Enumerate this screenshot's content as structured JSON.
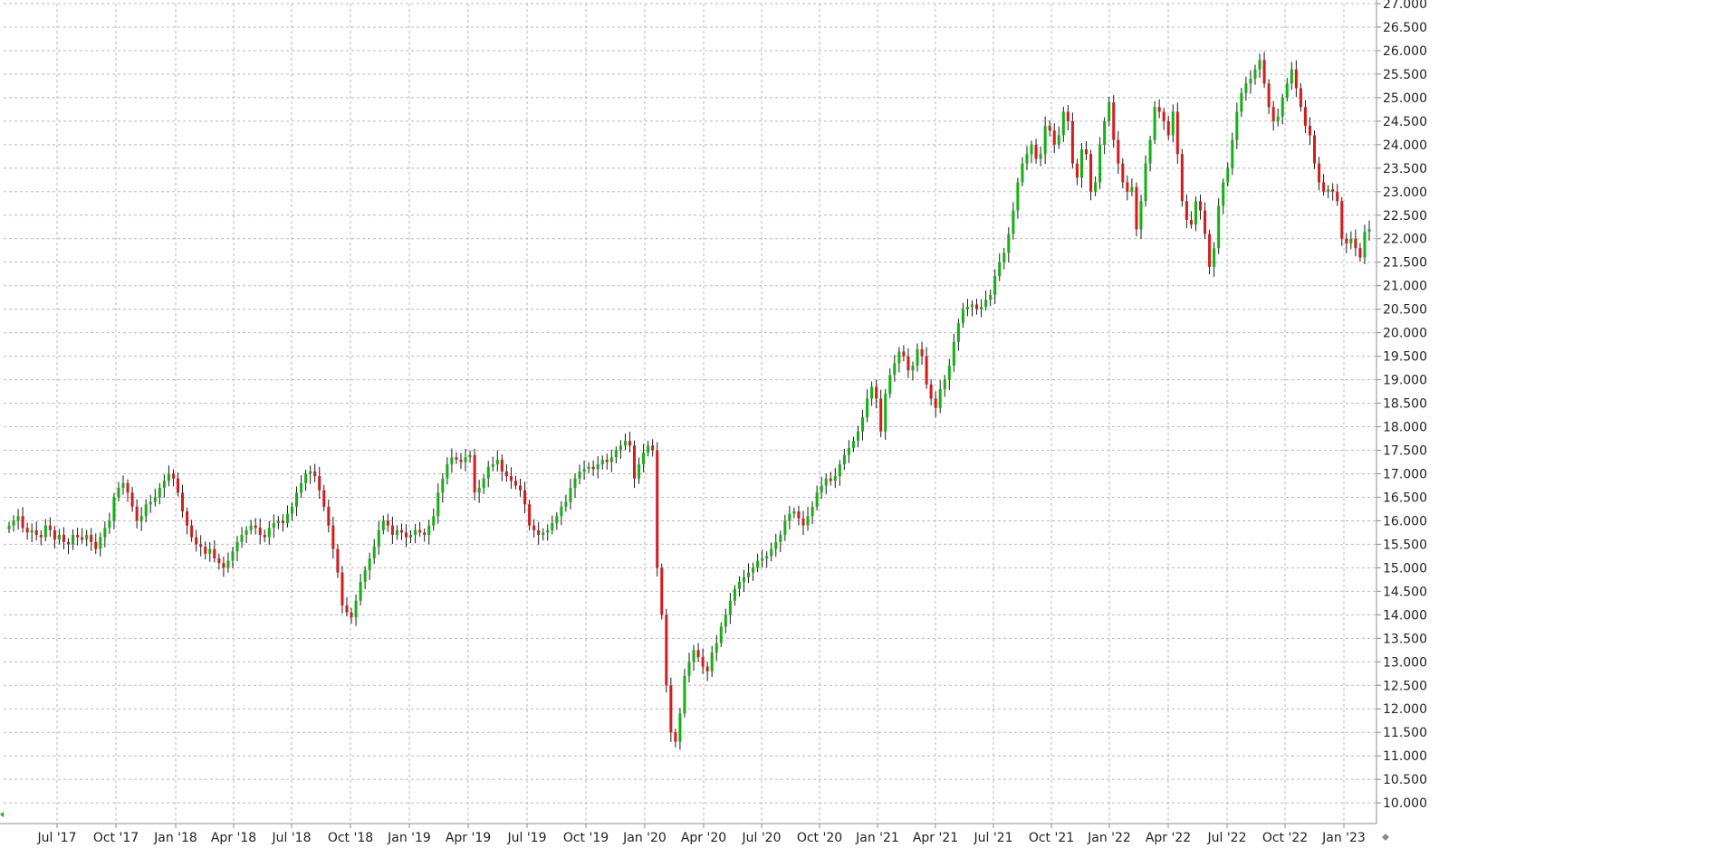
{
  "chart_data": {
    "type": "candlestick",
    "grid": true,
    "colors": {
      "up": "#13b113",
      "down": "#d81a1a",
      "wick": "#1a1a1a",
      "grid": "#b9b9b9",
      "axis": "#8c8c8c"
    },
    "x_tick_labels": [
      "Jul '17",
      "Oct '17",
      "Jan '18",
      "Apr '18",
      "Jul '18",
      "Oct '18",
      "Jan '19",
      "Apr '19",
      "Jul '19",
      "Oct '19",
      "Jan '20",
      "Apr '20",
      "Jul '20",
      "Oct '20",
      "Jan '21",
      "Apr '21",
      "Jul '21",
      "Oct '21",
      "Jan '22",
      "Apr '22",
      "Jul '22",
      "Oct '22",
      "Jan '23"
    ],
    "y_tick_labels": [
      "10.000",
      "10.500",
      "11.000",
      "11.500",
      "12.000",
      "12.500",
      "13.000",
      "13.500",
      "14.000",
      "14.500",
      "15.000",
      "15.500",
      "16.000",
      "16.500",
      "17.000",
      "17.500",
      "18.000",
      "18.500",
      "19.000",
      "19.500",
      "20.000",
      "20.500",
      "21.000",
      "21.500",
      "22.000",
      "22.500",
      "23.000",
      "23.500",
      "24.000",
      "24.500",
      "25.000",
      "25.500",
      "26.000",
      "26.500",
      "27.000"
    ],
    "ylim": [
      10000,
      27000
    ],
    "y_step": 500,
    "close_series": [
      15900,
      16000,
      16100,
      15850,
      15750,
      15800,
      15700,
      15650,
      15900,
      15800,
      15600,
      15700,
      15550,
      15500,
      15700,
      15650,
      15600,
      15700,
      15550,
      15400,
      15650,
      15850,
      16000,
      16500,
      16700,
      16800,
      16600,
      16300,
      16000,
      16100,
      16350,
      16400,
      16500,
      16700,
      16850,
      17000,
      16900,
      16600,
      16200,
      15900,
      15650,
      15500,
      15450,
      15300,
      15400,
      15200,
      15100,
      15000,
      15150,
      15350,
      15550,
      15700,
      15800,
      15900,
      15850,
      15700,
      15650,
      15850,
      15950,
      16000,
      15950,
      16150,
      16300,
      16600,
      16800,
      17000,
      17050,
      16950,
      16650,
      16300,
      15900,
      15400,
      14900,
      14200,
      14050,
      13950,
      14300,
      14700,
      14950,
      15200,
      15450,
      15800,
      16000,
      15900,
      15700,
      15800,
      15750,
      15650,
      15700,
      15800,
      15750,
      15700,
      15900,
      16100,
      16600,
      16900,
      17200,
      17350,
      17300,
      17250,
      17350,
      17400,
      16600,
      16700,
      16900,
      17150,
      17200,
      17300,
      17050,
      16950,
      16850,
      16750,
      16650,
      16350,
      15900,
      15800,
      15700,
      15750,
      15800,
      15950,
      16100,
      16300,
      16400,
      16700,
      16900,
      17050,
      17100,
      17150,
      17100,
      17200,
      17300,
      17250,
      17350,
      17500,
      17600,
      17700,
      17600,
      16900,
      17200,
      17450,
      17600,
      17500,
      15000,
      14000,
      12500,
      11500,
      11300,
      11900,
      12700,
      13000,
      13250,
      13100,
      12900,
      12800,
      13200,
      13400,
      13750,
      14000,
      14300,
      14550,
      14700,
      14800,
      14900,
      15000,
      15150,
      15200,
      15250,
      15400,
      15550,
      15700,
      16000,
      16150,
      16200,
      16050,
      15900,
      16100,
      16300,
      16600,
      16750,
      16900,
      16850,
      16950,
      17200,
      17400,
      17550,
      17700,
      17900,
      18200,
      18600,
      18850,
      18600,
      17900,
      18700,
      19100,
      19350,
      19600,
      19500,
      19200,
      19300,
      19650,
      19500,
      18900,
      18600,
      18400,
      18800,
      19000,
      19300,
      19800,
      20200,
      20500,
      20550,
      20600,
      20500,
      20550,
      20700,
      20800,
      21200,
      21500,
      21700,
      22100,
      22600,
      23200,
      23600,
      23800,
      24000,
      23700,
      23800,
      24400,
      24300,
      24000,
      24200,
      24700,
      24500,
      23600,
      23300,
      23900,
      23800,
      23000,
      23200,
      24000,
      24500,
      24900,
      24100,
      23600,
      23200,
      23000,
      23100,
      22200,
      22800,
      23600,
      24100,
      24800,
      24700,
      24500,
      24200,
      24700,
      23800,
      22800,
      22400,
      22300,
      22800,
      22600,
      22100,
      21400,
      21800,
      22700,
      23200,
      23500,
      24100,
      24700,
      25100,
      25300,
      25400,
      25600,
      25800,
      25300,
      24800,
      24500,
      24600,
      25000,
      25300,
      25600,
      25200,
      24800,
      24400,
      24200,
      23600,
      23200,
      23000,
      23050,
      23000,
      22800,
      22000,
      21900,
      22000,
      21800,
      21600,
      22150,
      22200
    ],
    "candle_count": 288
  }
}
